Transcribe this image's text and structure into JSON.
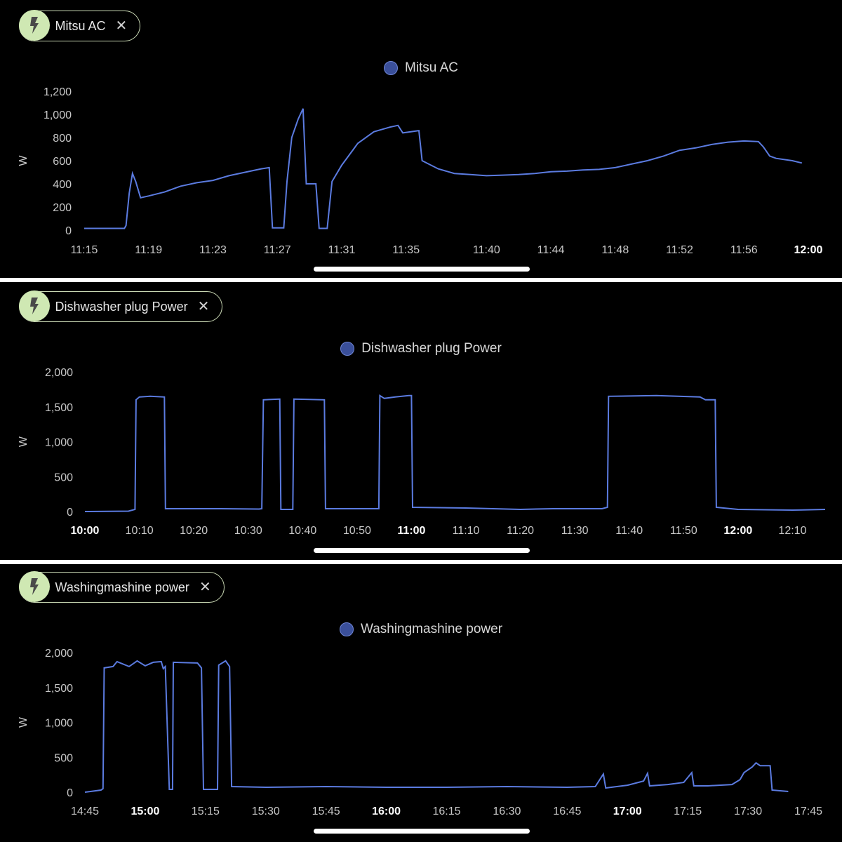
{
  "colors": {
    "line": "#5b7be0",
    "chip_icon_bg": "#cfe8b3",
    "chip_border": "#c9d8b4",
    "legend_dot": "#3a4f9a"
  },
  "icons": {
    "chip": "lightning-bolt-icon",
    "close": "close-icon"
  },
  "chart_data": [
    {
      "type": "line",
      "entity": "Mitsu AC",
      "series": [
        {
          "name": "Mitsu AC"
        }
      ],
      "ylabel": "W",
      "ylim": [
        0,
        1200
      ],
      "yticks": [
        {
          "v": 0,
          "label": "0"
        },
        {
          "v": 200,
          "label": "200"
        },
        {
          "v": 400,
          "label": "400"
        },
        {
          "v": 600,
          "label": "600"
        },
        {
          "v": 800,
          "label": "800"
        },
        {
          "v": 1000,
          "label": "1,000"
        },
        {
          "v": 1200,
          "label": "1,200"
        }
      ],
      "xlim": [
        675,
        720
      ],
      "xticks": [
        {
          "t": 675,
          "label": "11:15",
          "bold": false
        },
        {
          "t": 679,
          "label": "11:19",
          "bold": false
        },
        {
          "t": 683,
          "label": "11:23",
          "bold": false
        },
        {
          "t": 687,
          "label": "11:27",
          "bold": false
        },
        {
          "t": 691,
          "label": "11:31",
          "bold": false
        },
        {
          "t": 695,
          "label": "11:35",
          "bold": false
        },
        {
          "t": 700,
          "label": "11:40",
          "bold": false
        },
        {
          "t": 704,
          "label": "11:44",
          "bold": false
        },
        {
          "t": 708,
          "label": "11:48",
          "bold": false
        },
        {
          "t": 712,
          "label": "11:52",
          "bold": false
        },
        {
          "t": 716,
          "label": "11:56",
          "bold": false
        },
        {
          "t": 720,
          "label": "12:00",
          "bold": true
        }
      ],
      "points": [
        [
          675,
          15
        ],
        [
          677.5,
          15
        ],
        [
          677.6,
          40
        ],
        [
          677.8,
          320
        ],
        [
          678,
          490
        ],
        [
          678.2,
          420
        ],
        [
          678.5,
          280
        ],
        [
          679,
          295
        ],
        [
          680,
          330
        ],
        [
          681,
          380
        ],
        [
          682,
          410
        ],
        [
          683,
          430
        ],
        [
          684,
          470
        ],
        [
          685,
          500
        ],
        [
          686,
          530
        ],
        [
          686.5,
          540
        ],
        [
          686.7,
          20
        ],
        [
          687.4,
          20
        ],
        [
          687.6,
          420
        ],
        [
          687.9,
          800
        ],
        [
          688.3,
          960
        ],
        [
          688.6,
          1050
        ],
        [
          688.8,
          400
        ],
        [
          689.4,
          400
        ],
        [
          689.6,
          15
        ],
        [
          690.1,
          15
        ],
        [
          690.4,
          420
        ],
        [
          691,
          560
        ],
        [
          692,
          750
        ],
        [
          693,
          850
        ],
        [
          694,
          890
        ],
        [
          694.5,
          905
        ],
        [
          694.8,
          840
        ],
        [
          695.8,
          860
        ],
        [
          696,
          600
        ],
        [
          697,
          530
        ],
        [
          698,
          490
        ],
        [
          699,
          480
        ],
        [
          700,
          470
        ],
        [
          701,
          475
        ],
        [
          702,
          480
        ],
        [
          703,
          490
        ],
        [
          704,
          505
        ],
        [
          705,
          510
        ],
        [
          706,
          520
        ],
        [
          707,
          525
        ],
        [
          708,
          540
        ],
        [
          709,
          570
        ],
        [
          710,
          600
        ],
        [
          711,
          640
        ],
        [
          712,
          690
        ],
        [
          713,
          710
        ],
        [
          714,
          740
        ],
        [
          715,
          760
        ],
        [
          716,
          770
        ],
        [
          716.9,
          765
        ],
        [
          717.2,
          720
        ],
        [
          717.6,
          640
        ],
        [
          718,
          620
        ],
        [
          719,
          600
        ],
        [
          719.6,
          580
        ]
      ]
    },
    {
      "type": "line",
      "entity": "Dishwasher plug Power",
      "series": [
        {
          "name": "Dishwasher plug Power"
        }
      ],
      "ylabel": "W",
      "ylim": [
        0,
        2000
      ],
      "yticks": [
        {
          "v": 0,
          "label": "0"
        },
        {
          "v": 500,
          "label": "500"
        },
        {
          "v": 1000,
          "label": "1,000"
        },
        {
          "v": 1500,
          "label": "1,500"
        },
        {
          "v": 2000,
          "label": "2,000"
        }
      ],
      "xlim": [
        600,
        736
      ],
      "xticks": [
        {
          "t": 600,
          "label": "10:00",
          "bold": true
        },
        {
          "t": 610,
          "label": "10:10",
          "bold": false
        },
        {
          "t": 620,
          "label": "10:20",
          "bold": false
        },
        {
          "t": 630,
          "label": "10:30",
          "bold": false
        },
        {
          "t": 640,
          "label": "10:40",
          "bold": false
        },
        {
          "t": 650,
          "label": "10:50",
          "bold": false
        },
        {
          "t": 660,
          "label": "11:00",
          "bold": true
        },
        {
          "t": 670,
          "label": "11:10",
          "bold": false
        },
        {
          "t": 680,
          "label": "11:20",
          "bold": false
        },
        {
          "t": 690,
          "label": "11:30",
          "bold": false
        },
        {
          "t": 700,
          "label": "11:40",
          "bold": false
        },
        {
          "t": 710,
          "label": "11:50",
          "bold": false
        },
        {
          "t": 720,
          "label": "12:00",
          "bold": true
        },
        {
          "t": 730,
          "label": "12:10",
          "bold": false
        }
      ],
      "points": [
        [
          600,
          0
        ],
        [
          608,
          5
        ],
        [
          609.2,
          30
        ],
        [
          609.4,
          1600
        ],
        [
          610,
          1640
        ],
        [
          612,
          1650
        ],
        [
          614.6,
          1640
        ],
        [
          614.8,
          40
        ],
        [
          625,
          40
        ],
        [
          632,
          35
        ],
        [
          632.5,
          40
        ],
        [
          632.8,
          1600
        ],
        [
          635.8,
          1610
        ],
        [
          636,
          30
        ],
        [
          638.2,
          30
        ],
        [
          638.4,
          1610
        ],
        [
          644,
          1600
        ],
        [
          644.2,
          40
        ],
        [
          654,
          40
        ],
        [
          654.2,
          1660
        ],
        [
          655,
          1620
        ],
        [
          657,
          1640
        ],
        [
          659.5,
          1660
        ],
        [
          660,
          1660
        ],
        [
          660.2,
          60
        ],
        [
          670,
          50
        ],
        [
          680,
          30
        ],
        [
          686,
          40
        ],
        [
          695,
          40
        ],
        [
          696,
          60
        ],
        [
          696.2,
          1650
        ],
        [
          705,
          1660
        ],
        [
          713,
          1640
        ],
        [
          714,
          1600
        ],
        [
          715.8,
          1600
        ],
        [
          716,
          60
        ],
        [
          720,
          30
        ],
        [
          730,
          20
        ],
        [
          736,
          30
        ]
      ]
    },
    {
      "type": "line",
      "entity": "Washingmashine power",
      "series": [
        {
          "name": "Washingmashine power"
        }
      ],
      "ylabel": "W",
      "ylim": [
        0,
        2000
      ],
      "yticks": [
        {
          "v": 0,
          "label": "0"
        },
        {
          "v": 500,
          "label": "500"
        },
        {
          "v": 1000,
          "label": "1,000"
        },
        {
          "v": 1500,
          "label": "1,500"
        },
        {
          "v": 2000,
          "label": "2,000"
        }
      ],
      "xlim": [
        885,
        1065
      ],
      "xticks": [
        {
          "t": 885,
          "label": "14:45",
          "bold": false
        },
        {
          "t": 900,
          "label": "15:00",
          "bold": true
        },
        {
          "t": 915,
          "label": "15:15",
          "bold": false
        },
        {
          "t": 930,
          "label": "15:30",
          "bold": false
        },
        {
          "t": 945,
          "label": "15:45",
          "bold": false
        },
        {
          "t": 960,
          "label": "16:00",
          "bold": true
        },
        {
          "t": 975,
          "label": "16:15",
          "bold": false
        },
        {
          "t": 990,
          "label": "16:30",
          "bold": false
        },
        {
          "t": 1005,
          "label": "16:45",
          "bold": false
        },
        {
          "t": 1020,
          "label": "17:00",
          "bold": true
        },
        {
          "t": 1035,
          "label": "17:15",
          "bold": false
        },
        {
          "t": 1050,
          "label": "17:30",
          "bold": false
        },
        {
          "t": 1065,
          "label": "17:45",
          "bold": false
        }
      ],
      "points": [
        [
          885,
          0
        ],
        [
          889,
          30
        ],
        [
          889.5,
          50
        ],
        [
          889.8,
          1780
        ],
        [
          892,
          1800
        ],
        [
          893,
          1870
        ],
        [
          896,
          1800
        ],
        [
          898,
          1880
        ],
        [
          900,
          1810
        ],
        [
          902,
          1860
        ],
        [
          904,
          1870
        ],
        [
          904.5,
          1770
        ],
        [
          905,
          1800
        ],
        [
          906,
          40
        ],
        [
          906.8,
          40
        ],
        [
          907,
          1860
        ],
        [
          913,
          1850
        ],
        [
          914,
          1780
        ],
        [
          914.5,
          40
        ],
        [
          918,
          40
        ],
        [
          918.3,
          1820
        ],
        [
          920,
          1880
        ],
        [
          921,
          1800
        ],
        [
          921.5,
          80
        ],
        [
          930,
          70
        ],
        [
          945,
          80
        ],
        [
          960,
          70
        ],
        [
          975,
          70
        ],
        [
          990,
          80
        ],
        [
          1005,
          70
        ],
        [
          1012,
          80
        ],
        [
          1014,
          260
        ],
        [
          1014.6,
          60
        ],
        [
          1020,
          100
        ],
        [
          1024,
          160
        ],
        [
          1025,
          270
        ],
        [
          1025.5,
          90
        ],
        [
          1030,
          110
        ],
        [
          1034,
          140
        ],
        [
          1036,
          280
        ],
        [
          1036.5,
          90
        ],
        [
          1040,
          90
        ],
        [
          1046,
          110
        ],
        [
          1048,
          180
        ],
        [
          1049,
          280
        ],
        [
          1051,
          360
        ],
        [
          1052,
          420
        ],
        [
          1053,
          380
        ],
        [
          1055.5,
          380
        ],
        [
          1056,
          30
        ],
        [
          1060,
          10
        ]
      ]
    }
  ]
}
